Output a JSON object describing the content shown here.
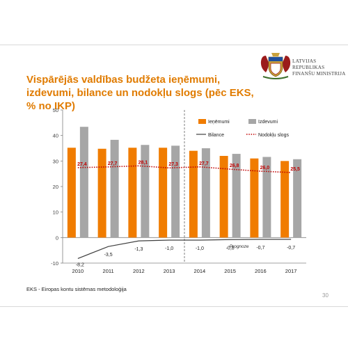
{
  "slide": {
    "title": "Vispārējās valdības budžeta ieņēmumi, izdevumi, bilance un nodokļu slogs (pēc EKS, % no IKP)",
    "logo_line1": "LATVIJAS REPUBLIKAS",
    "logo_line2": "FINANŠU MINISTRIJA",
    "footnote": "EKS  - Eiropas kontu sistēmas metodoloģija",
    "page_number": "30"
  },
  "colors": {
    "title": "#e07b00",
    "revenue": "#f07c00",
    "expenditure": "#a6a6a6",
    "balance": "#404040",
    "tax_burden": "#c00000"
  },
  "chart_data": {
    "type": "bar",
    "categories": [
      "2010",
      "2011",
      "2012",
      "2013",
      "2014",
      "2015",
      "2016",
      "2017"
    ],
    "ylim": [
      -10,
      50
    ],
    "yticks": [
      -10,
      0,
      10,
      20,
      30,
      40,
      50
    ],
    "forecast_label": "Prognoze",
    "series": [
      {
        "name": "Ieņēmumi",
        "kind": "bar",
        "values": [
          35.2,
          34.8,
          35.2,
          35.2,
          34.0,
          32.0,
          31.0,
          30.0
        ]
      },
      {
        "name": "Izdevumi",
        "kind": "bar",
        "values": [
          43.4,
          38.3,
          36.3,
          36.0,
          35.0,
          32.8,
          31.6,
          30.7
        ]
      },
      {
        "name": "Bilance",
        "kind": "line",
        "values": [
          -8.2,
          -3.5,
          -1.3,
          -1.0,
          -1.0,
          -0.8,
          -0.7,
          -0.7
        ],
        "labels": [
          "-8,2",
          "-3,5",
          "-1,3",
          "-1,0",
          "-1,0",
          "-0,8",
          "-0,7",
          "-0,7"
        ]
      },
      {
        "name": "Nodokļu slogs",
        "kind": "dotted-line",
        "values": [
          27.4,
          27.7,
          28.1,
          27.3,
          27.7,
          26.8,
          26.0,
          25.5
        ],
        "labels": [
          "27,4",
          "27,7",
          "28,1",
          "27,3",
          "27,7",
          "26,8",
          "26,0",
          "25,5"
        ]
      }
    ],
    "legend_placement": "top-right",
    "grid": false
  }
}
